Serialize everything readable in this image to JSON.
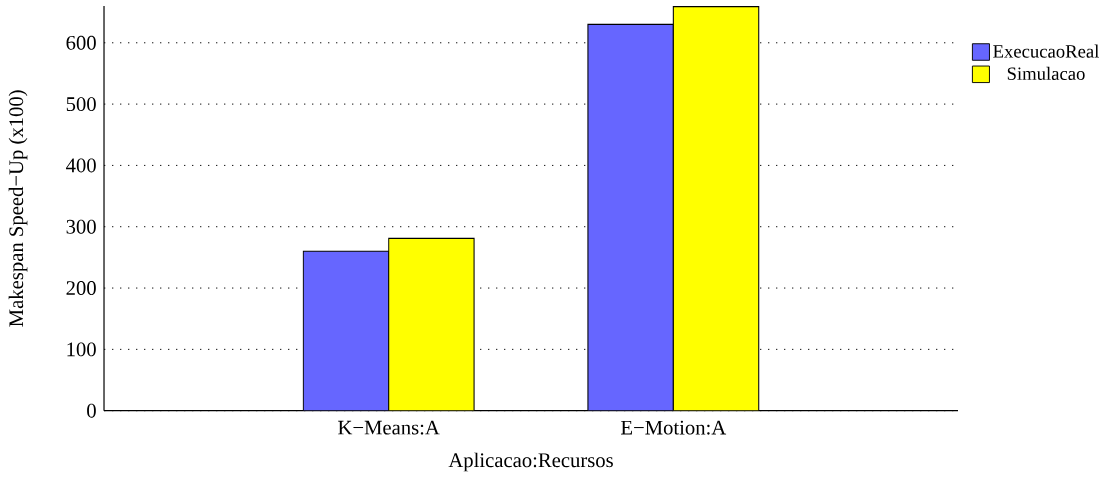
{
  "chart_data": {
    "type": "bar",
    "xlabel": "Aplicacao:Recursos",
    "ylabel": "Makespan Speed−Up (x100)",
    "categories": [
      "K−Means:A",
      "E−Motion:A"
    ],
    "series": [
      {
        "name": "ExecucaoReal",
        "color": "#6666ff",
        "values": [
          260,
          630
        ]
      },
      {
        "name": "Simulacao",
        "color": "#ffff00",
        "values": [
          281,
          659
        ]
      }
    ],
    "ylim": [
      0,
      660
    ],
    "yticks": [
      0,
      100,
      200,
      300,
      400,
      500,
      600
    ],
    "grid": "y",
    "legend": "top right"
  }
}
